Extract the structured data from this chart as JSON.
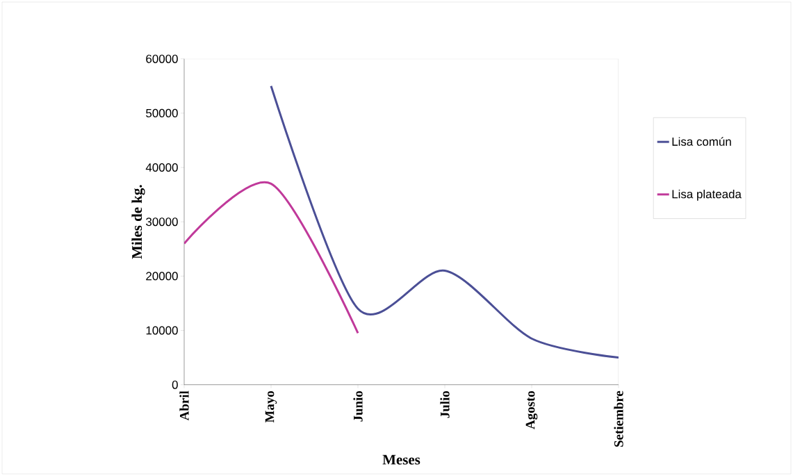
{
  "chart_data": {
    "type": "line",
    "xlabel": "Meses",
    "ylabel": "Miles de kg.",
    "categories": [
      "Abril",
      "Mayo",
      "Junio",
      "Julio",
      "Agosto",
      "Setiembre"
    ],
    "series": [
      {
        "name": "Lisa común",
        "color": "#4b4f96",
        "values": [
          null,
          55000,
          14000,
          21000,
          8500,
          5000
        ]
      },
      {
        "name": "Lisa plateada",
        "color": "#c0399a",
        "values": [
          26000,
          37000,
          9500,
          null,
          null,
          null
        ]
      }
    ],
    "ylim": [
      0,
      60000
    ],
    "yticks": [
      0,
      10000,
      20000,
      30000,
      40000,
      50000,
      60000
    ],
    "grid": false,
    "legend": "right",
    "marker": "none",
    "line_style": "solid"
  }
}
